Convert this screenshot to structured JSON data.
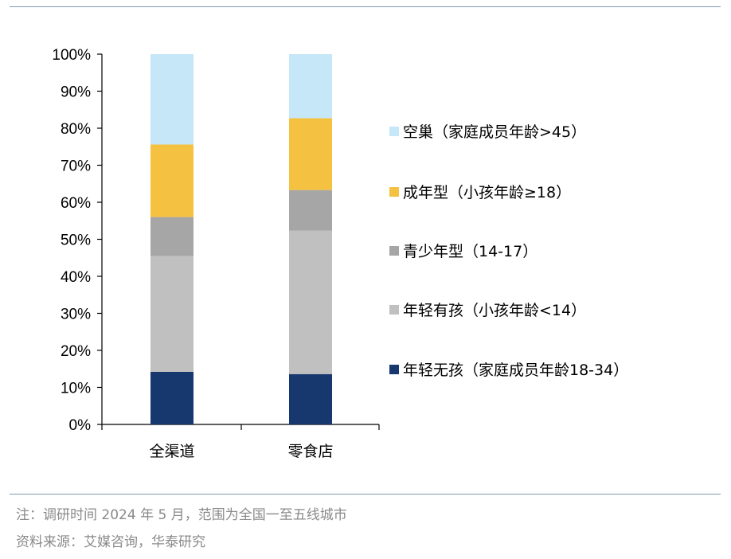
{
  "notes": {
    "note": "注：调研时间 2024 年 5 月，范围为全国一至五线城市",
    "source": "资料来源：艾媒咨询，华泰研究"
  },
  "chart_data": {
    "type": "bar",
    "stacked": true,
    "title": "",
    "xlabel": "",
    "ylabel": "",
    "ylim": [
      0,
      100
    ],
    "yticks": [
      "0%",
      "10%",
      "20%",
      "30%",
      "40%",
      "50%",
      "60%",
      "70%",
      "80%",
      "90%",
      "100%"
    ],
    "grid": false,
    "legend_position": "right",
    "categories": [
      "全渠道",
      "零食店"
    ],
    "series": [
      {
        "name": "年轻无孩（家庭成员年龄18-34）",
        "color": "#17376f",
        "values": [
          14.2,
          13.6
        ]
      },
      {
        "name": "年轻有孩（小孩年龄<14）",
        "color": "#c0c0c0",
        "values": [
          31.3,
          38.7
        ]
      },
      {
        "name": "青少年型（14-17）",
        "color": "#a6a6a6",
        "values": [
          10.5,
          11.0
        ]
      },
      {
        "name": "成年型（小孩年龄≥18）",
        "color": "#f4c141",
        "values": [
          19.6,
          19.4
        ]
      },
      {
        "name": "空巢（家庭成员年龄>45）",
        "color": "#c5e7f7",
        "values": [
          24.4,
          17.3
        ]
      }
    ]
  }
}
